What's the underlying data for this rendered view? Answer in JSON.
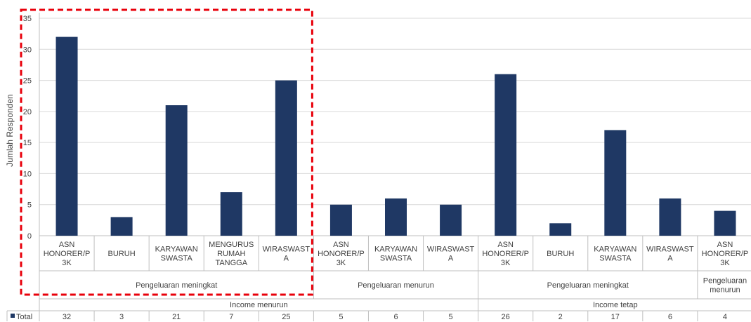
{
  "chart_data": {
    "type": "bar",
    "ylabel": "Jumlah Responden",
    "ylim": [
      0,
      35
    ],
    "yticks": [
      0,
      5,
      10,
      15,
      20,
      25,
      30,
      35
    ],
    "grid": true,
    "categories": [
      [
        "ASN",
        "HONORER/P",
        "3K"
      ],
      [
        "BURUH"
      ],
      [
        "KARYAWAN",
        "SWASTA"
      ],
      [
        "MENGURUS",
        "RUMAH",
        "TANGGA"
      ],
      [
        "WIRASWAST",
        "A"
      ],
      [
        "ASN",
        "HONORER/P",
        "3K"
      ],
      [
        "KARYAWAN",
        "SWASTA"
      ],
      [
        "WIRASWAST",
        "A"
      ],
      [
        "ASN",
        "HONORER/P",
        "3K"
      ],
      [
        "BURUH"
      ],
      [
        "KARYAWAN",
        "SWASTA"
      ],
      [
        "WIRASWAST",
        "A"
      ],
      [
        "ASN",
        "HONORER/P",
        "3K"
      ]
    ],
    "groups_level2": [
      {
        "label": [
          "Pengeluaran meningkat"
        ],
        "span": [
          0,
          4
        ]
      },
      {
        "label": [
          "Pengeluaran menurun"
        ],
        "span": [
          5,
          7
        ]
      },
      {
        "label": [
          "Pengeluaran meningkat"
        ],
        "span": [
          8,
          11
        ]
      },
      {
        "label": [
          "Pengeluaran",
          "menurun"
        ],
        "span": [
          12,
          12
        ]
      }
    ],
    "groups_level1": [
      {
        "label": "Income menurun",
        "span": [
          0,
          7
        ]
      },
      {
        "label": "Income tetap",
        "span": [
          8,
          12
        ]
      }
    ],
    "series": [
      {
        "name": "Total",
        "color": "#1f3864",
        "values": [
          32,
          3,
          21,
          7,
          25,
          5,
          6,
          5,
          26,
          2,
          17,
          6,
          4
        ]
      }
    ],
    "highlight": {
      "style": "dashed",
      "color": "#e8000b",
      "span": [
        0,
        4
      ]
    }
  }
}
